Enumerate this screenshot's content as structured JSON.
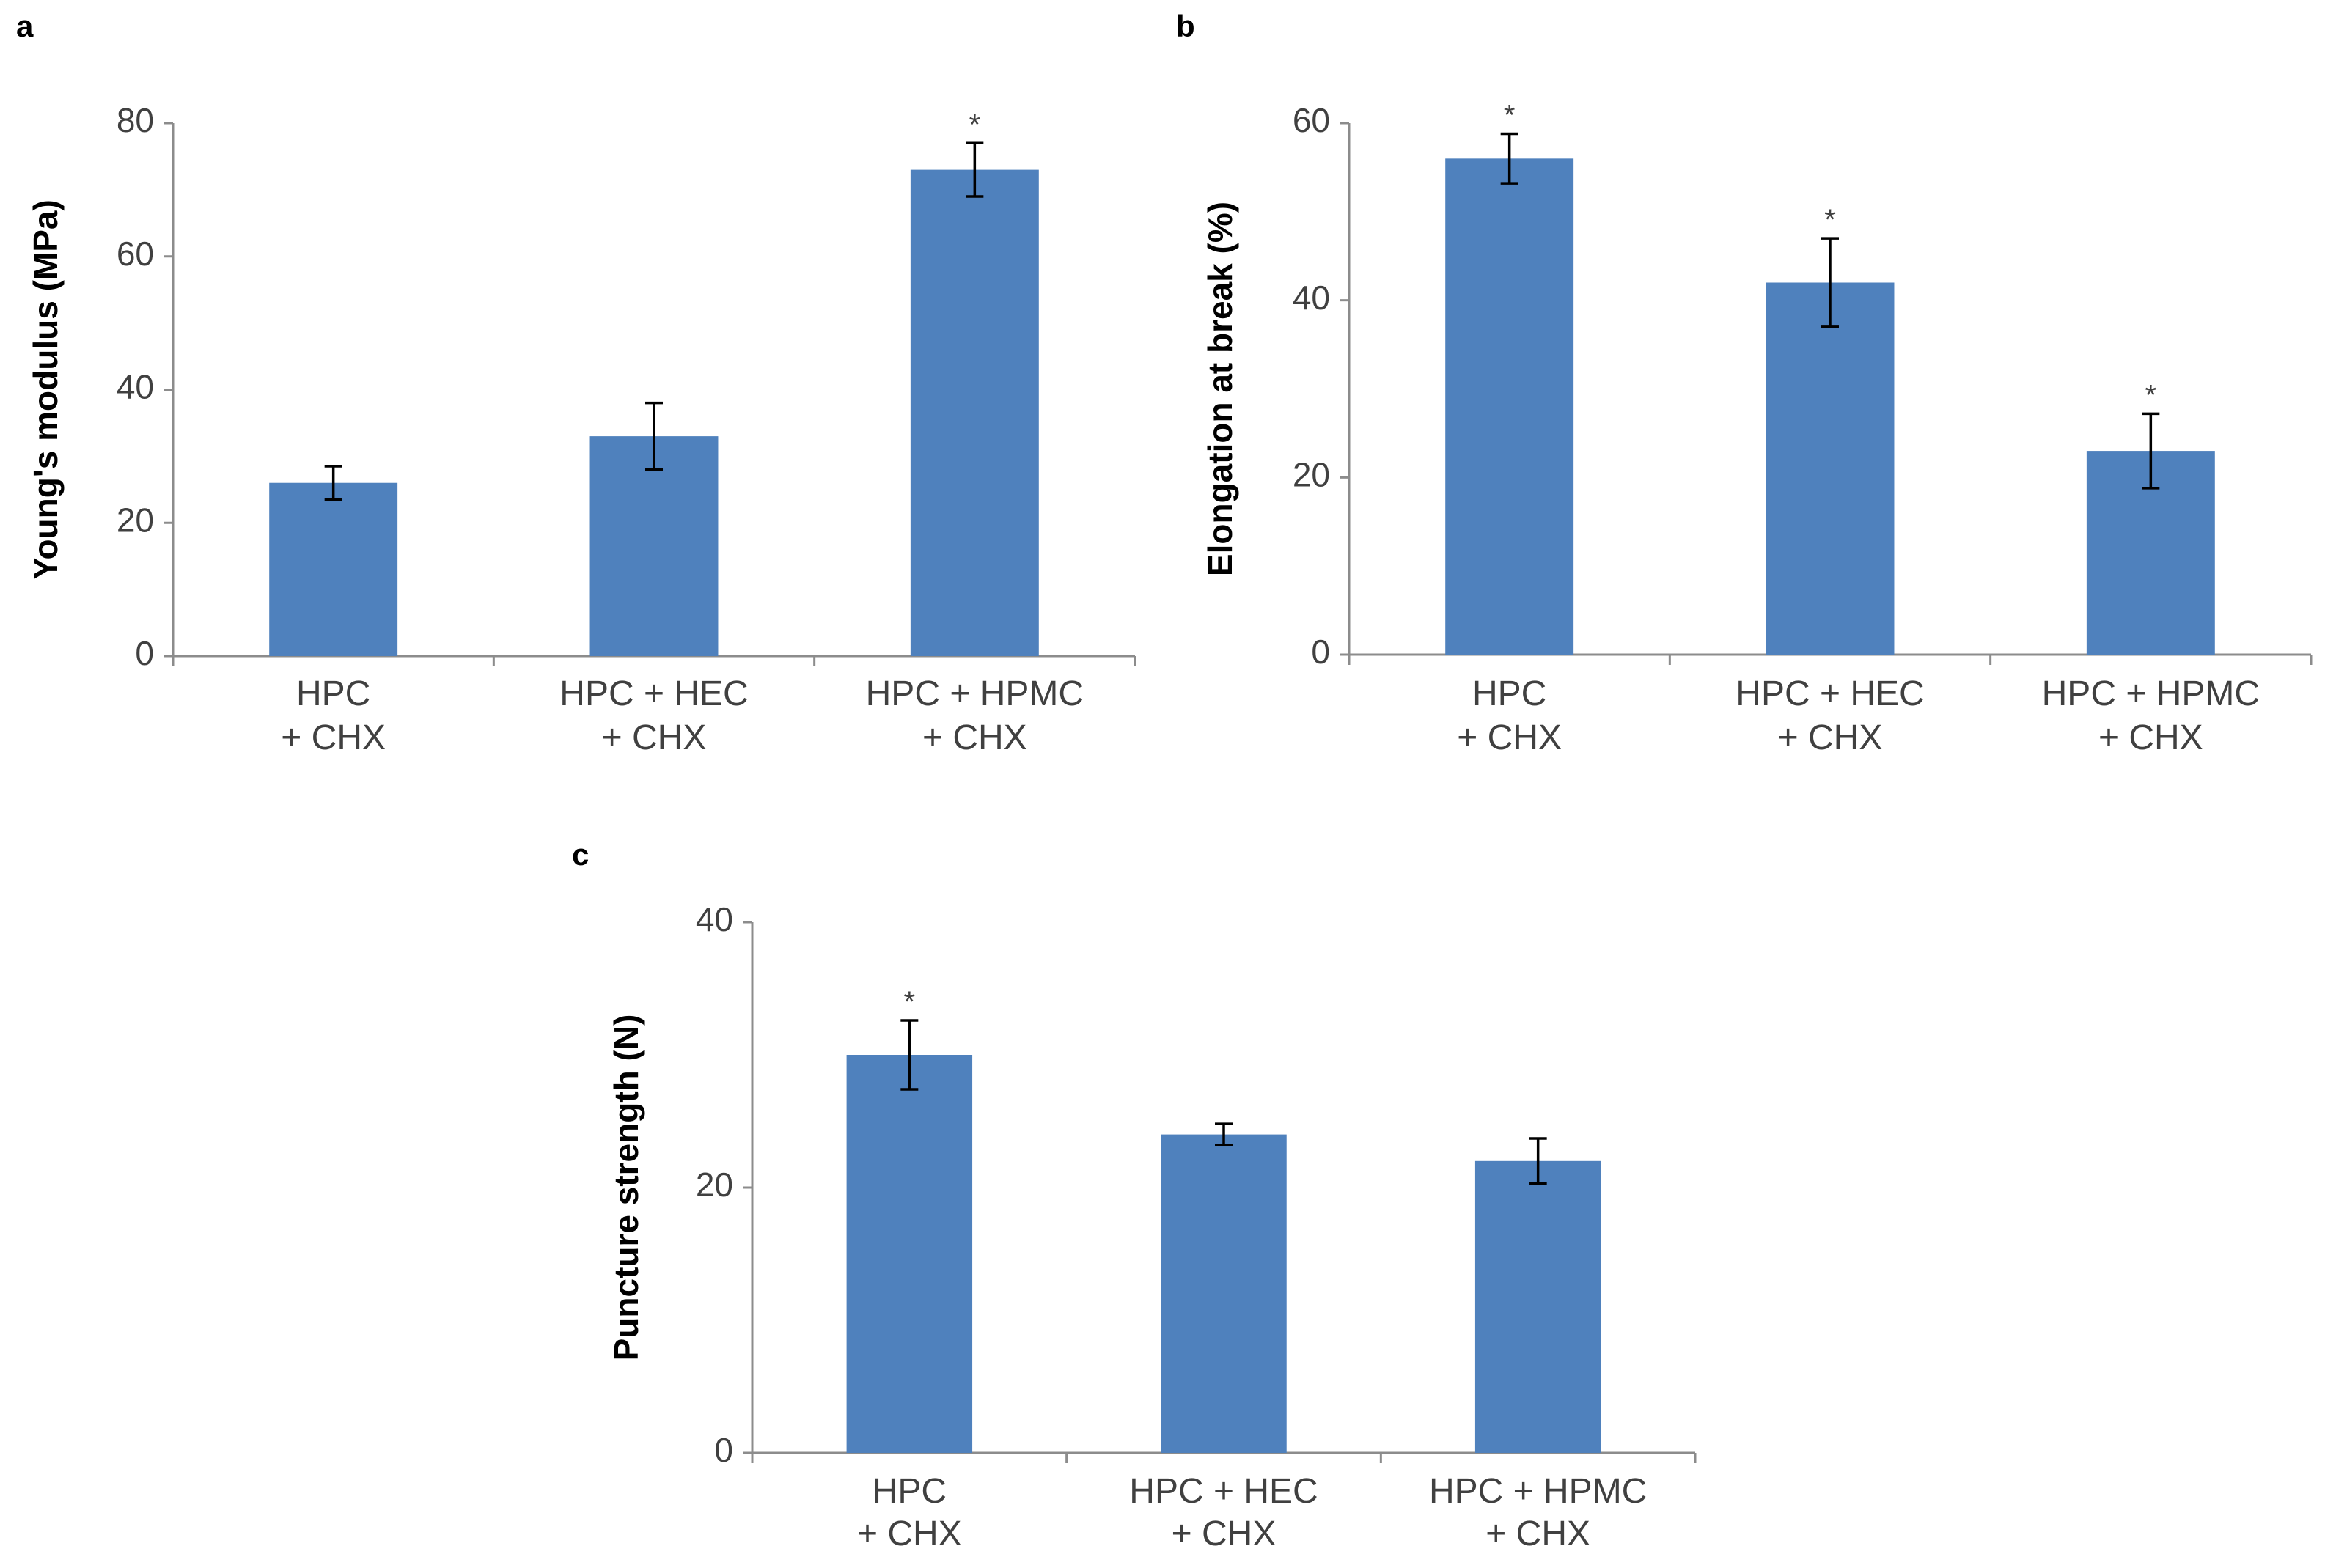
{
  "chart_data": [
    {
      "panel": "a",
      "type": "bar",
      "ylabel": "Young's modulus (MPa)",
      "xlabel": "",
      "ylim": [
        0,
        80
      ],
      "yticks": [
        0,
        20,
        40,
        60,
        80
      ],
      "categories": [
        [
          "HPC",
          "+ CHX"
        ],
        [
          "HPC + HEC",
          "+ CHX"
        ],
        [
          "HPC + HPMC",
          "+ CHX"
        ]
      ],
      "values": [
        26,
        33,
        73
      ],
      "errors": [
        2.5,
        5,
        4
      ],
      "significant": [
        false,
        false,
        true
      ],
      "marker": "*",
      "bar_color": "#4f81bd"
    },
    {
      "panel": "b",
      "type": "bar",
      "ylabel": "Elongation at break (%)",
      "xlabel": "",
      "ylim": [
        0,
        60
      ],
      "yticks": [
        0,
        20,
        40,
        60
      ],
      "categories": [
        [
          "HPC",
          "+ CHX"
        ],
        [
          "HPC + HEC",
          "+ CHX"
        ],
        [
          "HPC + HPMC",
          "+ CHX"
        ]
      ],
      "values": [
        56,
        42,
        23
      ],
      "errors": [
        2.8,
        5,
        4.2
      ],
      "significant": [
        true,
        true,
        true
      ],
      "marker": "*",
      "bar_color": "#4f81bd"
    },
    {
      "panel": "c",
      "type": "bar",
      "ylabel": "Puncture strength (N)",
      "xlabel": "",
      "ylim": [
        0,
        40
      ],
      "yticks": [
        0,
        20,
        40
      ],
      "categories": [
        [
          "HPC",
          "+ CHX"
        ],
        [
          "HPC + HEC",
          "+ CHX"
        ],
        [
          "HPC + HPMC",
          "+ CHX"
        ]
      ],
      "values": [
        30,
        24,
        22
      ],
      "errors": [
        2.6,
        0.8,
        1.7
      ],
      "significant": [
        true,
        false,
        false
      ],
      "marker": "*",
      "bar_color": "#4f81bd"
    }
  ]
}
